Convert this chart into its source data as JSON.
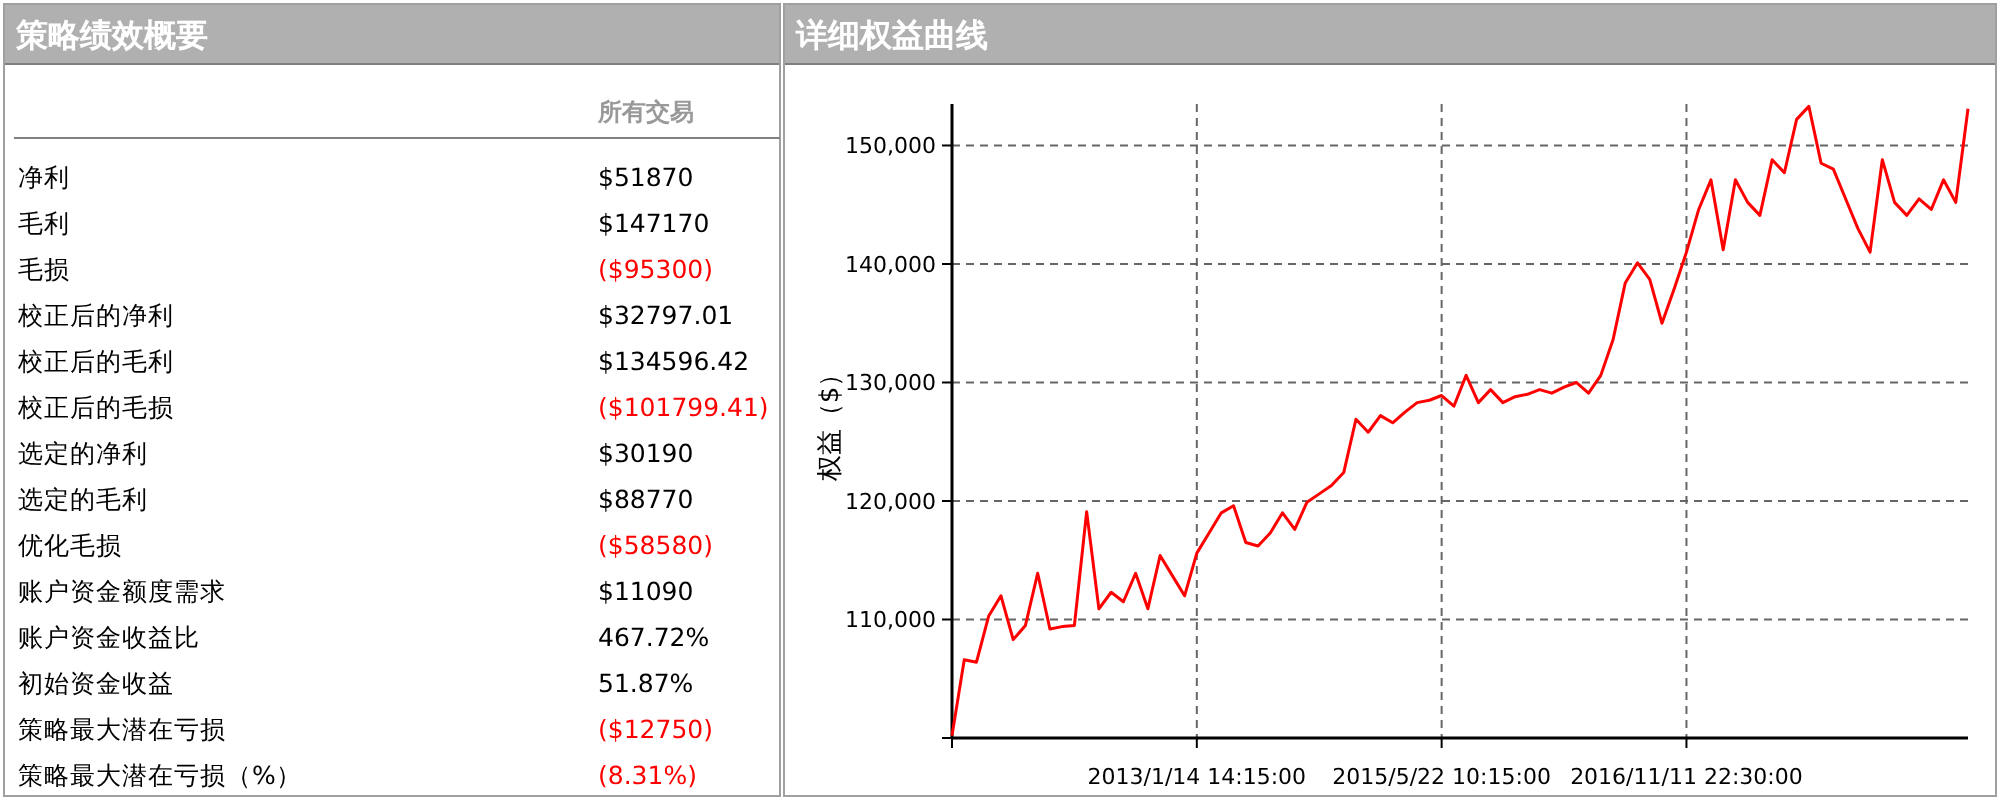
{
  "chart_data": [
    {
      "type": "other",
      "title": "策略绩效概要",
      "annotations": [
        "所有交易"
      ],
      "categories": [
        "净利",
        "毛利",
        "毛损",
        "校正后的净利",
        "校正后的毛利",
        "校正后的毛损",
        "选定的净利",
        "选定的毛利",
        "优化毛损",
        "账户资金额度需求",
        "账户资金收益比",
        "初始资金收益",
        "策略最大潜在亏损",
        "策略最大潜在亏损（%）"
      ],
      "value_labels": [
        "$51870",
        "$147170",
        "($95300)",
        "$32797.01",
        "$134596.42",
        "($101799.41)",
        "$30190",
        "$88770",
        "($58580)",
        "$11090",
        "467.72%",
        "51.87%",
        "($12750)",
        "(8.31%)"
      ],
      "colors": [
        "#000000",
        "#000000",
        "#ff0000",
        "#000000",
        "#000000",
        "#ff0000",
        "#000000",
        "#000000",
        "#ff0000",
        "#000000",
        "#000000",
        "#000000",
        "#ff0000",
        "#ff0000"
      ]
    },
    {
      "type": "line",
      "title": "详细权益曲线",
      "ylabel": "权益（$）",
      "grid": true,
      "marker": "none",
      "line_style": "solid",
      "categories": [
        null,
        null,
        null,
        null,
        null,
        null,
        null,
        null,
        null,
        null,
        null,
        null,
        null,
        null,
        null,
        null,
        null,
        null,
        null,
        null,
        "2013/1/14 14:15:00",
        null,
        null,
        null,
        null,
        null,
        null,
        null,
        null,
        null,
        null,
        null,
        null,
        null,
        null,
        null,
        null,
        null,
        null,
        null,
        "2015/5/22 10:15:00",
        null,
        null,
        null,
        null,
        null,
        null,
        null,
        null,
        null,
        null,
        null,
        null,
        null,
        null,
        null,
        null,
        null,
        null,
        null,
        "2016/11/11 22:30:00",
        null,
        null,
        null,
        null,
        null,
        null,
        null,
        null,
        null,
        null,
        null,
        null,
        null,
        null,
        null,
        null,
        null,
        null,
        null,
        null,
        null,
        null,
        null
      ],
      "ylim": [
        100000,
        153500
      ],
      "yticks": [
        {
          "value": 100000,
          "label": null
        },
        {
          "value": 110000,
          "label": "110,000"
        },
        {
          "value": 120000,
          "label": "120,000"
        },
        {
          "value": 130000,
          "label": "130,000"
        },
        {
          "value": 140000,
          "label": "140,000"
        },
        {
          "value": 150000,
          "label": "150,000"
        }
      ],
      "series": [
        {
          "color": "#ff0000",
          "values": [
            100200,
            106600,
            106400,
            110300,
            112000,
            108300,
            109500,
            113900,
            109200,
            109400,
            109500,
            119100,
            110900,
            112300,
            111500,
            113900,
            110900,
            115400,
            113700,
            112000,
            115600,
            117300,
            119000,
            119600,
            116500,
            116200,
            117300,
            119000,
            117600,
            119900,
            120600,
            121300,
            122400,
            126900,
            125800,
            127200,
            126600,
            127500,
            128300,
            128500,
            128900,
            128000,
            130600,
            128300,
            129400,
            128300,
            128800,
            129000,
            129400,
            129100,
            129600,
            130000,
            129100,
            130600,
            133600,
            138400,
            140100,
            138700,
            135000,
            137900,
            141000,
            144600,
            147100,
            141200,
            147100,
            145200,
            144100,
            148800,
            147700,
            152200,
            153300,
            148500,
            148000,
            145500,
            143000,
            141000,
            148800,
            145200,
            144100,
            145500,
            144600,
            147100,
            145200,
            153100
          ]
        }
      ]
    }
  ]
}
